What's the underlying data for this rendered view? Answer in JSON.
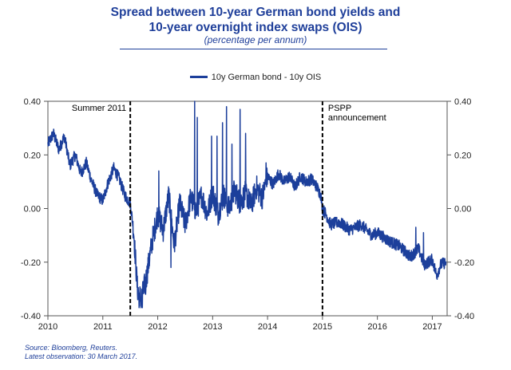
{
  "chart_data": {
    "type": "line",
    "title_line1": "Spread between 10-year German bond yields and",
    "title_line2": "10-year overnight index swaps (OIS)",
    "subtitle": "(percentage per annum)",
    "series": [
      {
        "name": "10y German bond - 10y OIS",
        "color": "#1c3f9b",
        "anchors": [
          {
            "x": 2010.0,
            "y": 0.24
          },
          {
            "x": 2010.1,
            "y": 0.28
          },
          {
            "x": 2010.2,
            "y": 0.22
          },
          {
            "x": 2010.3,
            "y": 0.27
          },
          {
            "x": 2010.4,
            "y": 0.16
          },
          {
            "x": 2010.5,
            "y": 0.2
          },
          {
            "x": 2010.6,
            "y": 0.13
          },
          {
            "x": 2010.7,
            "y": 0.17
          },
          {
            "x": 2010.8,
            "y": 0.1
          },
          {
            "x": 2010.9,
            "y": 0.05
          },
          {
            "x": 2011.0,
            "y": 0.03
          },
          {
            "x": 2011.1,
            "y": 0.1
          },
          {
            "x": 2011.2,
            "y": 0.15
          },
          {
            "x": 2011.3,
            "y": 0.11
          },
          {
            "x": 2011.4,
            "y": 0.05
          },
          {
            "x": 2011.5,
            "y": 0.02
          },
          {
            "x": 2011.56,
            "y": -0.08
          },
          {
            "x": 2011.63,
            "y": -0.3
          },
          {
            "x": 2011.7,
            "y": -0.34
          },
          {
            "x": 2011.8,
            "y": -0.25
          },
          {
            "x": 2011.9,
            "y": -0.12
          },
          {
            "x": 2012.0,
            "y": -0.02
          },
          {
            "x": 2012.1,
            "y": -0.08
          },
          {
            "x": 2012.2,
            "y": 0.05
          },
          {
            "x": 2012.3,
            "y": -0.14
          },
          {
            "x": 2012.4,
            "y": 0.02
          },
          {
            "x": 2012.5,
            "y": -0.06
          },
          {
            "x": 2012.6,
            "y": 0.04
          },
          {
            "x": 2012.7,
            "y": -0.01
          },
          {
            "x": 2012.8,
            "y": 0.05
          },
          {
            "x": 2012.9,
            "y": -0.02
          },
          {
            "x": 2013.0,
            "y": 0.06
          },
          {
            "x": 2013.1,
            "y": -0.02
          },
          {
            "x": 2013.2,
            "y": 0.05
          },
          {
            "x": 2013.3,
            "y": 0.0
          },
          {
            "x": 2013.4,
            "y": 0.07
          },
          {
            "x": 2013.5,
            "y": 0.02
          },
          {
            "x": 2013.6,
            "y": 0.06
          },
          {
            "x": 2013.7,
            "y": 0.01
          },
          {
            "x": 2013.8,
            "y": 0.08
          },
          {
            "x": 2013.9,
            "y": 0.04
          },
          {
            "x": 2014.0,
            "y": 0.12
          },
          {
            "x": 2014.1,
            "y": 0.09
          },
          {
            "x": 2014.2,
            "y": 0.13
          },
          {
            "x": 2014.3,
            "y": 0.1
          },
          {
            "x": 2014.4,
            "y": 0.12
          },
          {
            "x": 2014.5,
            "y": 0.08
          },
          {
            "x": 2014.6,
            "y": 0.12
          },
          {
            "x": 2014.7,
            "y": 0.1
          },
          {
            "x": 2014.8,
            "y": 0.11
          },
          {
            "x": 2014.9,
            "y": 0.08
          },
          {
            "x": 2014.97,
            "y": 0.05
          },
          {
            "x": 2015.0,
            "y": 0.0
          },
          {
            "x": 2015.06,
            "y": -0.02
          },
          {
            "x": 2015.15,
            "y": -0.06
          },
          {
            "x": 2015.3,
            "y": -0.05
          },
          {
            "x": 2015.5,
            "y": -0.08
          },
          {
            "x": 2015.7,
            "y": -0.06
          },
          {
            "x": 2015.9,
            "y": -0.1
          },
          {
            "x": 2016.0,
            "y": -0.09
          },
          {
            "x": 2016.2,
            "y": -0.12
          },
          {
            "x": 2016.4,
            "y": -0.14
          },
          {
            "x": 2016.6,
            "y": -0.18
          },
          {
            "x": 2016.75,
            "y": -0.15
          },
          {
            "x": 2016.85,
            "y": -0.21
          },
          {
            "x": 2017.0,
            "y": -0.19
          },
          {
            "x": 2017.08,
            "y": -0.25
          },
          {
            "x": 2017.15,
            "y": -0.21
          },
          {
            "x": 2017.25,
            "y": -0.2
          }
        ],
        "spikes": [
          {
            "x": 2011.66,
            "y": -0.37
          },
          {
            "x": 2011.72,
            "y": -0.37
          },
          {
            "x": 2011.78,
            "y": -0.32
          },
          {
            "x": 2012.02,
            "y": 0.14
          },
          {
            "x": 2012.24,
            "y": -0.22
          },
          {
            "x": 2012.67,
            "y": 0.4
          },
          {
            "x": 2012.72,
            "y": 0.34
          },
          {
            "x": 2012.98,
            "y": 0.27
          },
          {
            "x": 2013.08,
            "y": 0.27
          },
          {
            "x": 2013.18,
            "y": 0.32
          },
          {
            "x": 2013.25,
            "y": 0.38
          },
          {
            "x": 2013.35,
            "y": 0.24
          },
          {
            "x": 2013.5,
            "y": 0.37
          },
          {
            "x": 2013.6,
            "y": 0.28
          },
          {
            "x": 2013.97,
            "y": 0.17
          },
          {
            "x": 2016.7,
            "y": -0.07
          },
          {
            "x": 2016.84,
            "y": -0.09
          }
        ]
      }
    ],
    "x_ticks": [
      "2010",
      "2011",
      "2012",
      "2013",
      "2014",
      "2015",
      "2016",
      "2017"
    ],
    "x_tick_values": [
      2010,
      2011,
      2012,
      2013,
      2014,
      2015,
      2016,
      2017
    ],
    "xlim": [
      2010,
      2017.27
    ],
    "y_ticks": [
      "0.40",
      "0.20",
      "0.00",
      "-0.20",
      "-0.40"
    ],
    "y_tick_values": [
      0.4,
      0.2,
      0.0,
      -0.2,
      -0.4
    ],
    "ylim": [
      -0.4,
      0.4
    ],
    "vlines": [
      {
        "x": 2011.5,
        "label": [
          "Summer  2011"
        ],
        "label_side": "left"
      },
      {
        "x": 2015.0,
        "label": [
          "PSPP",
          "announcement"
        ],
        "label_side": "right"
      }
    ],
    "legend_position": "top-center",
    "grid": false
  },
  "footer": {
    "source": "Source: Bloomberg, Reuters.",
    "latest": "Latest observation: 30 March 2017."
  }
}
